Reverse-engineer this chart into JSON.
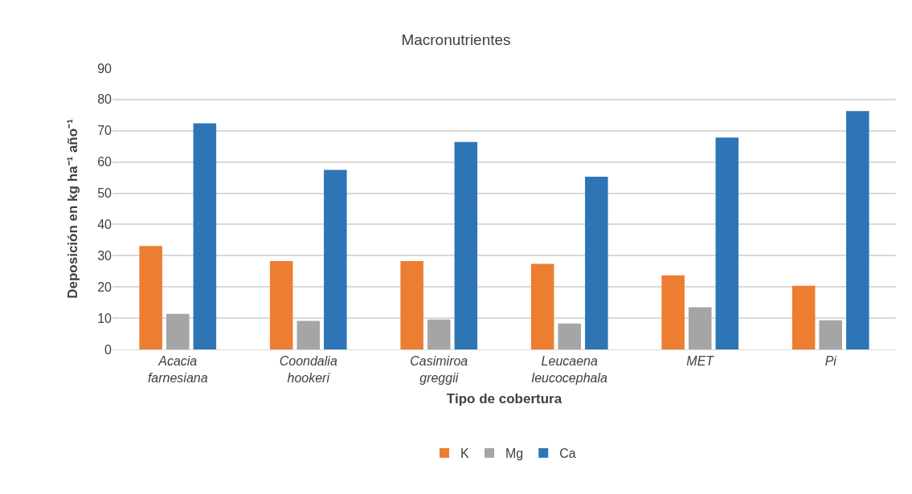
{
  "chart_data": {
    "type": "bar",
    "title": "Macronutrientes",
    "xlabel": "Tipo de cobertura",
    "ylabel": "Deposición en kg ha⁻¹ año⁻¹",
    "categories": [
      "Acacia farnesiana",
      "Coondalia hookeri",
      "Casimiroa greggii",
      "Leucaena leucocephala",
      "MET",
      "Pi"
    ],
    "series": [
      {
        "name": "K",
        "color": "#ed7d31",
        "values": [
          33.1,
          28.3,
          28.3,
          27.4,
          23.7,
          20.4
        ]
      },
      {
        "name": "Mg",
        "color": "#a5a5a5",
        "values": [
          11.4,
          9.1,
          9.6,
          8.3,
          13.5,
          9.3
        ]
      },
      {
        "name": "Ca",
        "color": "#2e75b6",
        "values": [
          72.4,
          57.5,
          66.4,
          55.3,
          67.8,
          76.3
        ]
      }
    ],
    "ylim": [
      0,
      90
    ],
    "yticks": [
      0,
      10,
      20,
      30,
      40,
      50,
      60,
      70,
      80,
      90
    ],
    "grid": "y",
    "legend": "bottom"
  }
}
